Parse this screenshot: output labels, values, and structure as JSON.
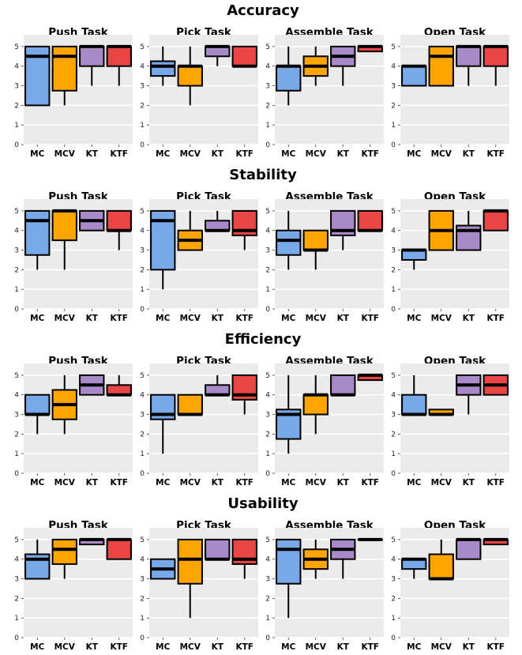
{
  "chart_data": [
    {
      "type": "box",
      "title": "Accuracy",
      "categories": [
        "MC",
        "MCV",
        "KT",
        "KTF"
      ],
      "series_colors": [
        "#78a8e8",
        "#ffa500",
        "#a98ac8",
        "#e84545"
      ],
      "ylim": [
        0,
        5.6
      ],
      "yticks": [
        0,
        1,
        2,
        3,
        4,
        5
      ],
      "grid": true,
      "panels": [
        {
          "title": "Push Task",
          "boxes": [
            {
              "category": "MC",
              "min": 2,
              "q1": 2,
              "median": 4.5,
              "q3": 5,
              "max": 5
            },
            {
              "category": "MCV",
              "min": 2,
              "q1": 2.75,
              "median": 4.5,
              "q3": 5,
              "max": 5
            },
            {
              "category": "KT",
              "min": 3,
              "q1": 4,
              "median": 5,
              "q3": 5,
              "max": 5
            },
            {
              "category": "KTF",
              "min": 3,
              "q1": 4,
              "median": 5,
              "q3": 5,
              "max": 5
            }
          ]
        },
        {
          "title": "Pick Task",
          "boxes": [
            {
              "category": "MC",
              "min": 3,
              "q1": 3.5,
              "median": 4,
              "q3": 4.25,
              "max": 5
            },
            {
              "category": "MCV",
              "min": 2,
              "q1": 3,
              "median": 4,
              "q3": 4,
              "max": 5
            },
            {
              "category": "KT",
              "min": 4,
              "q1": 4.5,
              "median": 5,
              "q3": 5,
              "max": 5
            },
            {
              "category": "KTF",
              "min": 4,
              "q1": 4,
              "median": 4,
              "q3": 5,
              "max": 5
            }
          ]
        },
        {
          "title": "Assemble Task",
          "boxes": [
            {
              "category": "MC",
              "min": 2,
              "q1": 2.75,
              "median": 4,
              "q3": 4,
              "max": 5
            },
            {
              "category": "MCV",
              "min": 3,
              "q1": 3.5,
              "median": 4,
              "q3": 4.5,
              "max": 5
            },
            {
              "category": "KT",
              "min": 3,
              "q1": 4,
              "median": 4.5,
              "q3": 5,
              "max": 5
            },
            {
              "category": "KTF",
              "min": 4.75,
              "q1": 4.75,
              "median": 5,
              "q3": 5,
              "max": 5
            }
          ]
        },
        {
          "title": "Open Task",
          "boxes": [
            {
              "category": "MC",
              "min": 3,
              "q1": 3,
              "median": 4,
              "q3": 4,
              "max": 4
            },
            {
              "category": "MCV",
              "min": 3,
              "q1": 3,
              "median": 4.5,
              "q3": 5,
              "max": 5
            },
            {
              "category": "KT",
              "min": 3,
              "q1": 4,
              "median": 5,
              "q3": 5,
              "max": 5
            },
            {
              "category": "KTF",
              "min": 3,
              "q1": 4,
              "median": 5,
              "q3": 5,
              "max": 5
            }
          ]
        }
      ]
    },
    {
      "type": "box",
      "title": "Stability",
      "categories": [
        "MC",
        "MCV",
        "KT",
        "KTF"
      ],
      "series_colors": [
        "#78a8e8",
        "#ffa500",
        "#a98ac8",
        "#e84545"
      ],
      "ylim": [
        0,
        5.6
      ],
      "yticks": [
        0,
        1,
        2,
        3,
        4,
        5
      ],
      "grid": true,
      "panels": [
        {
          "title": "Push Task",
          "boxes": [
            {
              "category": "MC",
              "min": 2,
              "q1": 2.75,
              "median": 4.5,
              "q3": 5,
              "max": 5
            },
            {
              "category": "MCV",
              "min": 2,
              "q1": 3.5,
              "median": 5,
              "q3": 5,
              "max": 5
            },
            {
              "category": "KT",
              "min": 4,
              "q1": 4,
              "median": 4.5,
              "q3": 5,
              "max": 5
            },
            {
              "category": "KTF",
              "min": 3,
              "q1": 4,
              "median": 4,
              "q3": 5,
              "max": 5
            }
          ]
        },
        {
          "title": "Pick Task",
          "boxes": [
            {
              "category": "MC",
              "min": 1,
              "q1": 2,
              "median": 4.5,
              "q3": 5,
              "max": 5
            },
            {
              "category": "MCV",
              "min": 3,
              "q1": 3,
              "median": 3.5,
              "q3": 4,
              "max": 5
            },
            {
              "category": "KT",
              "min": 4,
              "q1": 4,
              "median": 4,
              "q3": 4.5,
              "max": 5
            },
            {
              "category": "KTF",
              "min": 3,
              "q1": 3.75,
              "median": 4,
              "q3": 5,
              "max": 5
            }
          ]
        },
        {
          "title": "Assemble Task",
          "boxes": [
            {
              "category": "MC",
              "min": 2,
              "q1": 2.75,
              "median": 3.5,
              "q3": 4,
              "max": 5
            },
            {
              "category": "MCV",
              "min": 2,
              "q1": 3,
              "median": 3,
              "q3": 4,
              "max": 4
            },
            {
              "category": "KT",
              "min": 3,
              "q1": 3.75,
              "median": 4,
              "q3": 5,
              "max": 5
            },
            {
              "category": "KTF",
              "min": 4,
              "q1": 4,
              "median": 4,
              "q3": 5,
              "max": 5
            }
          ]
        },
        {
          "title": "Open Task",
          "boxes": [
            {
              "category": "MC",
              "min": 2,
              "q1": 2.5,
              "median": 3,
              "q3": 3,
              "max": 3
            },
            {
              "category": "MCV",
              "min": 3,
              "q1": 3,
              "median": 4,
              "q3": 5,
              "max": 5
            },
            {
              "category": "KT",
              "min": 3,
              "q1": 3,
              "median": 4,
              "q3": 4.25,
              "max": 5
            },
            {
              "category": "KTF",
              "min": 4,
              "q1": 4,
              "median": 5,
              "q3": 5,
              "max": 5
            }
          ]
        }
      ]
    },
    {
      "type": "box",
      "title": "Efficiency",
      "categories": [
        "MC",
        "MCV",
        "KT",
        "KTF"
      ],
      "series_colors": [
        "#78a8e8",
        "#ffa500",
        "#a98ac8",
        "#e84545"
      ],
      "ylim": [
        0,
        5.6
      ],
      "yticks": [
        0,
        1,
        2,
        3,
        4,
        5
      ],
      "grid": true,
      "panels": [
        {
          "title": "Push Task",
          "boxes": [
            {
              "category": "MC",
              "min": 2,
              "q1": 3,
              "median": 3,
              "q3": 4,
              "max": 4
            },
            {
              "category": "MCV",
              "min": 2,
              "q1": 2.75,
              "median": 3.5,
              "q3": 4.25,
              "max": 5
            },
            {
              "category": "KT",
              "min": 4,
              "q1": 4,
              "median": 4.5,
              "q3": 5,
              "max": 5
            },
            {
              "category": "KTF",
              "min": 4,
              "q1": 4,
              "median": 4,
              "q3": 4.5,
              "max": 5
            }
          ]
        },
        {
          "title": "Pick Task",
          "boxes": [
            {
              "category": "MC",
              "min": 1,
              "q1": 2.75,
              "median": 3,
              "q3": 4,
              "max": 4
            },
            {
              "category": "MCV",
              "min": 3,
              "q1": 3,
              "median": 3,
              "q3": 4,
              "max": 4
            },
            {
              "category": "KT",
              "min": 4,
              "q1": 4,
              "median": 4,
              "q3": 4.5,
              "max": 5
            },
            {
              "category": "KTF",
              "min": 3,
              "q1": 3.75,
              "median": 4,
              "q3": 5,
              "max": 5
            }
          ]
        },
        {
          "title": "Assemble Task",
          "boxes": [
            {
              "category": "MC",
              "min": 1,
              "q1": 1.75,
              "median": 3,
              "q3": 3.25,
              "max": 5
            },
            {
              "category": "MCV",
              "min": 2,
              "q1": 3,
              "median": 4,
              "q3": 4,
              "max": 5
            },
            {
              "category": "KT",
              "min": 4,
              "q1": 4,
              "median": 4,
              "q3": 5,
              "max": 5
            },
            {
              "category": "KTF",
              "min": 4.75,
              "q1": 4.75,
              "median": 5,
              "q3": 5,
              "max": 5
            }
          ]
        },
        {
          "title": "Open Task",
          "boxes": [
            {
              "category": "MC",
              "min": 3,
              "q1": 3,
              "median": 3,
              "q3": 4,
              "max": 5
            },
            {
              "category": "MCV",
              "min": 3,
              "q1": 3,
              "median": 3,
              "q3": 3.25,
              "max": 3.25
            },
            {
              "category": "KT",
              "min": 3,
              "q1": 4,
              "median": 4.5,
              "q3": 5,
              "max": 5
            },
            {
              "category": "KTF",
              "min": 4,
              "q1": 4,
              "median": 4.5,
              "q3": 5,
              "max": 5
            }
          ]
        }
      ]
    },
    {
      "type": "box",
      "title": "Usability",
      "categories": [
        "MC",
        "MCV",
        "KT",
        "KTF"
      ],
      "series_colors": [
        "#78a8e8",
        "#ffa500",
        "#a98ac8",
        "#e84545"
      ],
      "ylim": [
        0,
        5.6
      ],
      "yticks": [
        0,
        1,
        2,
        3,
        4,
        5
      ],
      "grid": true,
      "panels": [
        {
          "title": "Push Task",
          "boxes": [
            {
              "category": "MC",
              "min": 3,
              "q1": 3,
              "median": 4,
              "q3": 4.25,
              "max": 5
            },
            {
              "category": "MCV",
              "min": 3,
              "q1": 3.75,
              "median": 4.5,
              "q3": 5,
              "max": 5
            },
            {
              "category": "KT",
              "min": 4.75,
              "q1": 4.75,
              "median": 5,
              "q3": 5,
              "max": 5
            },
            {
              "category": "KTF",
              "min": 4,
              "q1": 4,
              "median": 5,
              "q3": 5,
              "max": 5
            }
          ]
        },
        {
          "title": "Pick Task",
          "boxes": [
            {
              "category": "MC",
              "min": 3,
              "q1": 3,
              "median": 3.5,
              "q3": 4,
              "max": 4
            },
            {
              "category": "MCV",
              "min": 1,
              "q1": 2.75,
              "median": 4,
              "q3": 5,
              "max": 5
            },
            {
              "category": "KT",
              "min": 4,
              "q1": 4,
              "median": 4,
              "q3": 5,
              "max": 5
            },
            {
              "category": "KTF",
              "min": 3,
              "q1": 3.75,
              "median": 4,
              "q3": 5,
              "max": 5
            }
          ]
        },
        {
          "title": "Assemble Task",
          "boxes": [
            {
              "category": "MC",
              "min": 1,
              "q1": 2.75,
              "median": 4.5,
              "q3": 5,
              "max": 5
            },
            {
              "category": "MCV",
              "min": 3,
              "q1": 3.5,
              "median": 4,
              "q3": 4.5,
              "max": 5
            },
            {
              "category": "KT",
              "min": 3,
              "q1": 4,
              "median": 4.5,
              "q3": 5,
              "max": 5
            },
            {
              "category": "KTF",
              "min": 5,
              "q1": 5,
              "median": 5,
              "q3": 5,
              "max": 5
            }
          ]
        },
        {
          "title": "Open Task",
          "boxes": [
            {
              "category": "MC",
              "min": 3,
              "q1": 3.5,
              "median": 4,
              "q3": 4,
              "max": 4
            },
            {
              "category": "MCV",
              "min": 3,
              "q1": 3,
              "median": 3,
              "q3": 4.25,
              "max": 5
            },
            {
              "category": "KT",
              "min": 4,
              "q1": 4,
              "median": 5,
              "q3": 5,
              "max": 5
            },
            {
              "category": "KTF",
              "min": 4.75,
              "q1": 4.75,
              "median": 5,
              "q3": 5,
              "max": 5
            }
          ]
        }
      ]
    }
  ]
}
